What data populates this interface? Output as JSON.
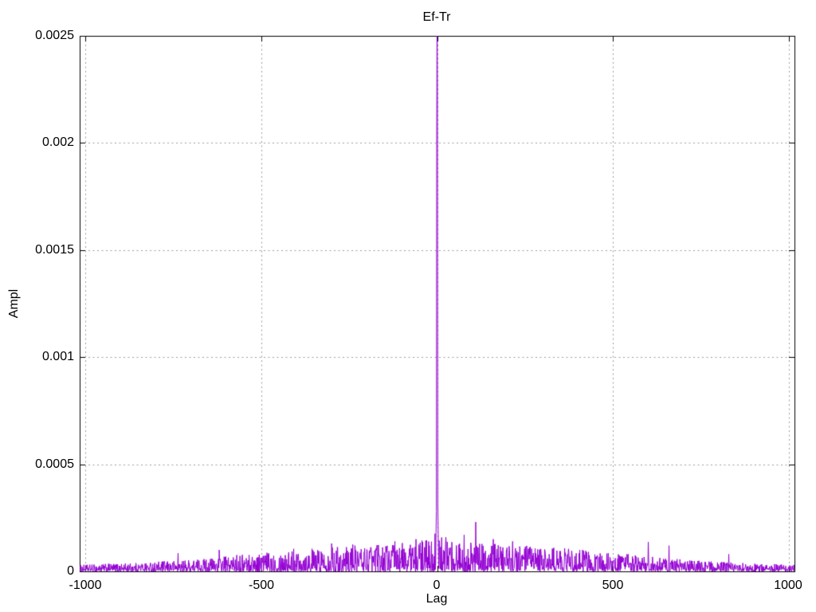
{
  "chart_data": {
    "type": "line",
    "title": "Ef-Tr",
    "xlabel": "Lag",
    "ylabel": "Ampl",
    "xlim": [
      -1017,
      1017
    ],
    "ylim": [
      0,
      0.0025
    ],
    "xticks": [
      {
        "value": -1000,
        "label": "-1000"
      },
      {
        "value": -500,
        "label": "-500"
      },
      {
        "value": 0,
        "label": "0"
      },
      {
        "value": 500,
        "label": "500"
      },
      {
        "value": 1000,
        "label": "1000"
      }
    ],
    "yticks": [
      {
        "value": 0,
        "label": "0"
      },
      {
        "value": 0.0005,
        "label": "0.0005"
      },
      {
        "value": 0.001,
        "label": "0.001"
      },
      {
        "value": 0.0015,
        "label": "0.0015"
      },
      {
        "value": 0.002,
        "label": "0.002"
      },
      {
        "value": 0.0025,
        "label": "0.0025"
      }
    ],
    "grid": true,
    "grid_style": "dotted",
    "legend_position": "none",
    "colors": {
      "line": "#9400d3",
      "grid": "#9c9c9c",
      "border": "#000000",
      "background": "#ffffff",
      "text": "#000000"
    },
    "series": [
      {
        "name": "Ef-Tr",
        "description": "cross-correlation amplitude vs lag; sharp peak at lag 0 clipped at top of axis, triangular noise floor decaying toward the edges",
        "lag_range": [
          -1017,
          1017
        ],
        "lag_step": 1,
        "peak": {
          "lag": 0,
          "ampl": 0.0026,
          "clipped_at_top": true,
          "shoulder_ampl": 0.00225
        },
        "key_points": [
          [
            -3,
            0.00018
          ],
          [
            -2,
            0.00028
          ],
          [
            -1,
            0.0021
          ],
          [
            0,
            0.0026
          ],
          [
            1,
            0.00225
          ],
          [
            2,
            0.00032
          ],
          [
            3,
            0.0002
          ]
        ],
        "spikes": [
          [
            -737,
            8.5e-05
          ],
          [
            -620,
            0.0001
          ],
          [
            -408,
            0.000105
          ],
          [
            -300,
            0.00013
          ],
          [
            -240,
            0.000125
          ],
          [
            -120,
            0.00014
          ],
          [
            -60,
            0.00015
          ],
          [
            25,
            0.00016
          ],
          [
            77,
            0.00017
          ],
          [
            110,
            0.00023
          ],
          [
            160,
            0.00015
          ],
          [
            215,
            0.00014
          ],
          [
            374,
            0.000105
          ],
          [
            601,
            0.000137
          ],
          [
            660,
            0.00012
          ],
          [
            830,
            8e-05
          ]
        ],
        "noise_envelope": [
          [
            0,
            0.0003
          ],
          [
            2,
            0.00022
          ],
          [
            5,
            0.00018
          ],
          [
            20,
            0.00015
          ],
          [
            60,
            0.00014
          ],
          [
            150,
            0.00013
          ],
          [
            250,
            0.00012
          ],
          [
            350,
            0.00011
          ],
          [
            450,
            9.5e-05
          ],
          [
            550,
            8e-05
          ],
          [
            650,
            6.2e-05
          ],
          [
            750,
            5e-05
          ],
          [
            850,
            4e-05
          ],
          [
            950,
            3.5e-05
          ],
          [
            1017,
            3e-05
          ]
        ],
        "noise_seed": 1234
      }
    ]
  }
}
